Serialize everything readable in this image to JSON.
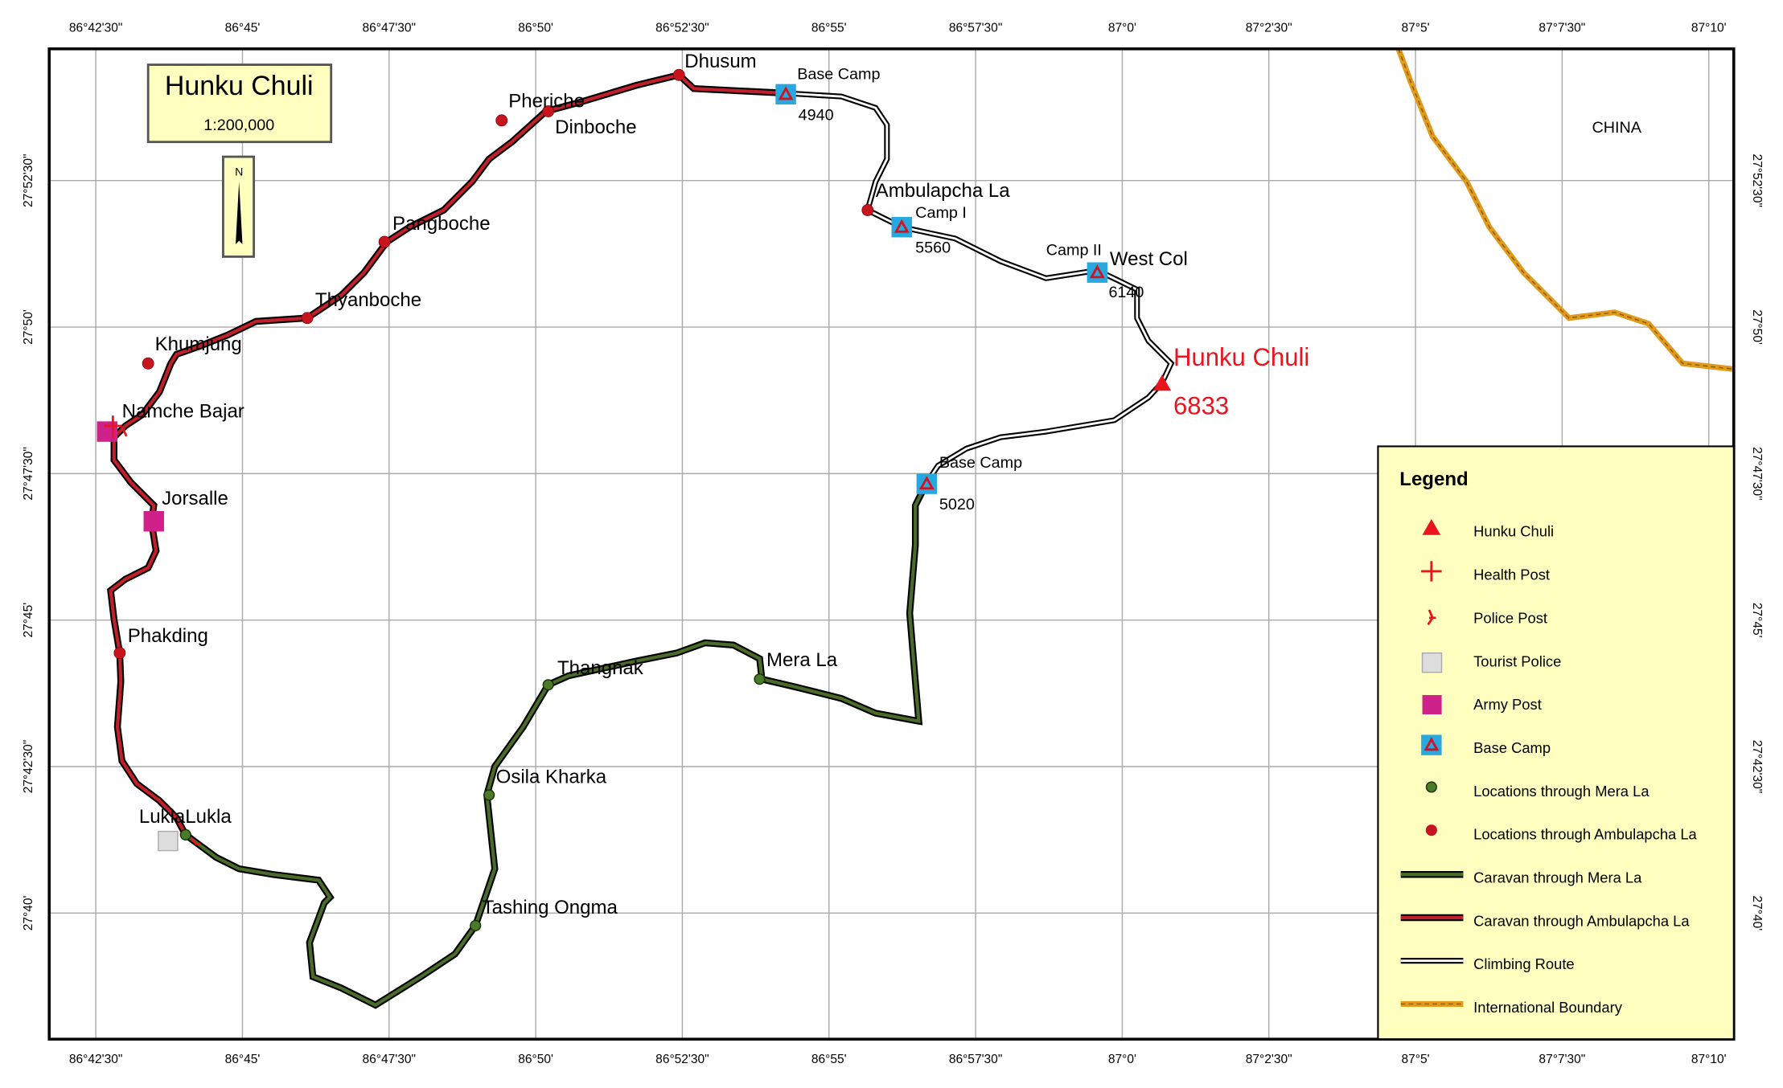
{
  "map": {
    "title": "Hunku Chuli",
    "scale": "1:200,000",
    "north": "N",
    "longitudes": [
      "86°42'30\"",
      "86°45'",
      "86°47'30\"",
      "86°50'",
      "86°52'30\"",
      "86°55'",
      "86°57'30\"",
      "87°0'",
      "87°2'30\"",
      "87°5'",
      "87°7'30\"",
      "87°10'"
    ],
    "latitudes": [
      "27°52'30\"",
      "27°50'",
      "27°47'30\"",
      "27°45'",
      "27°42'30\"",
      "27°40'"
    ],
    "places": [
      "Dhusum",
      "Base Camp",
      "4940",
      "Pheriche",
      "Dinboche",
      "Ambulapcha La",
      "Camp I",
      "5560",
      "Camp II",
      "West Col",
      "6140",
      "Hunku Chuli",
      "6833",
      "Base Camp",
      "5020",
      "Pangboche",
      "Thyanboche",
      "Khumjung",
      "Namche Bajar",
      "Jorsalle",
      "Phakding",
      "Thangnak",
      "Mera La",
      "Osila Kharka",
      "Tashing Ongma",
      "LuklaLukla",
      "CHINA"
    ],
    "legend": {
      "title": "Legend",
      "items": [
        "Hunku Chuli",
        "Health Post",
        "Police Post",
        "Tourist Police",
        "Army Post",
        "Base Camp",
        "Locations through Mera La",
        "Locations through Ambulapcha La",
        "Caravan through Mera La",
        "Caravan through Ambulapcha La",
        "Climbing Route",
        "International Boundary"
      ]
    }
  }
}
